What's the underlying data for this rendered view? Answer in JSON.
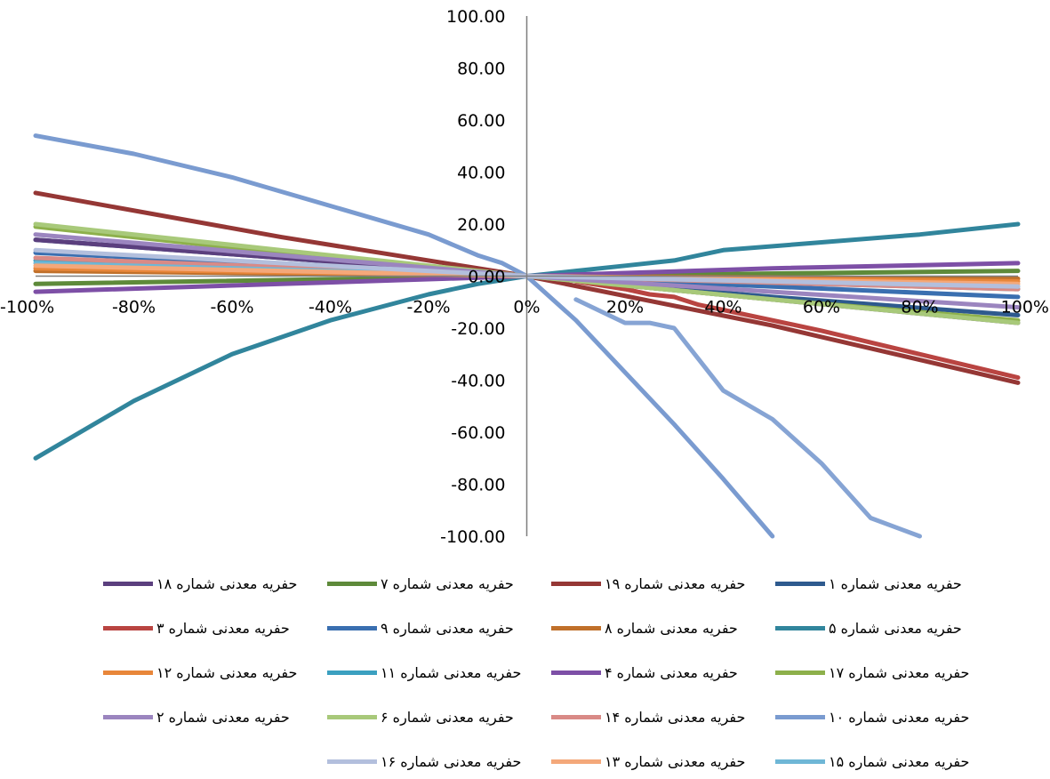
{
  "chart_data": {
    "type": "line",
    "title": "",
    "xlabel": "",
    "ylabel": "",
    "xlim": [
      -100,
      100
    ],
    "ylim": [
      -100,
      100
    ],
    "x_tick_labels": [
      "-100%",
      "-80%",
      "-60%",
      "-40%",
      "-20%",
      "0%",
      "20%",
      "40%",
      "60%",
      "80%",
      "100%"
    ],
    "y_tick_labels": [
      "100.00",
      "80.00",
      "60.00",
      "40.00",
      "20.00",
      "0.00",
      "-20.00",
      "-40.00",
      "-60.00",
      "-80.00",
      "-100.00"
    ],
    "legend_position": "bottom",
    "series": [
      {
        "name": "حفریه معدنی شماره ۱",
        "color": "#2E5A8E",
        "points": [
          [
            -100,
            14
          ],
          [
            -50,
            7
          ],
          [
            0,
            0
          ],
          [
            50,
            -8
          ],
          [
            100,
            -15
          ]
        ]
      },
      {
        "name": "حفریه معدنی شماره ۱۹",
        "color": "#953735",
        "points": [
          [
            -100,
            32
          ],
          [
            -50,
            15
          ],
          [
            0,
            0
          ],
          [
            50,
            -19
          ],
          [
            100,
            -41
          ]
        ]
      },
      {
        "name": "حفریه معدنی شماره ۷",
        "color": "#5E8A3A",
        "points": [
          [
            -100,
            -3
          ],
          [
            0,
            0
          ],
          [
            100,
            2
          ]
        ]
      },
      {
        "name": "حفریه معدنی شماره ۱۸",
        "color": "#5B3F7E",
        "points": [
          [
            -100,
            14
          ],
          [
            -50,
            7
          ],
          [
            0,
            0
          ],
          [
            50,
            -9
          ],
          [
            100,
            -18
          ]
        ]
      },
      {
        "name": "حفریه معدنی شماره ۵",
        "color": "#31859C",
        "points": [
          [
            -100,
            -70
          ],
          [
            -80,
            -48
          ],
          [
            -60,
            -30
          ],
          [
            -40,
            -17
          ],
          [
            -20,
            -7
          ],
          [
            -10,
            -3
          ],
          [
            0,
            0
          ],
          [
            10,
            2
          ],
          [
            20,
            4
          ],
          [
            30,
            6
          ],
          [
            40,
            10
          ],
          [
            60,
            13
          ],
          [
            80,
            16
          ],
          [
            100,
            20
          ]
        ]
      },
      {
        "name": "حفریه معدنی شماره ۸",
        "color": "#C0702A",
        "points": [
          [
            -100,
            2
          ],
          [
            0,
            0
          ],
          [
            100,
            -1
          ]
        ]
      },
      {
        "name": "حفریه معدنی شماره ۹",
        "color": "#3A6FB0",
        "points": [
          [
            -100,
            9
          ],
          [
            0,
            0
          ],
          [
            100,
            -8
          ]
        ]
      },
      {
        "name": "حفریه معدنی شماره ۳",
        "color": "#B94441",
        "points": [
          [
            10,
            -2
          ],
          [
            20,
            -5
          ],
          [
            25,
            -7
          ],
          [
            30,
            -8
          ],
          [
            35,
            -11
          ],
          [
            40,
            -13
          ],
          [
            60,
            -21
          ],
          [
            80,
            -30
          ],
          [
            100,
            -39
          ]
        ]
      },
      {
        "name": "حفریه معدنی شماره ۱۷",
        "color": "#8DB04B",
        "points": [
          [
            -100,
            19
          ],
          [
            -50,
            9
          ],
          [
            0,
            0
          ],
          [
            50,
            -9
          ],
          [
            100,
            -17
          ]
        ]
      },
      {
        "name": "حفریه معدنی شماره ۴",
        "color": "#7D4FA6",
        "points": [
          [
            -100,
            -6
          ],
          [
            -50,
            -3
          ],
          [
            0,
            0
          ],
          [
            50,
            3
          ],
          [
            100,
            5
          ]
        ]
      },
      {
        "name": "حفریه معدنی شماره ۱۱",
        "color": "#3BA0C0",
        "points": [
          [
            -100,
            6
          ],
          [
            0,
            0
          ],
          [
            100,
            -5
          ]
        ]
      },
      {
        "name": "حفریه معدنی شماره ۱۲",
        "color": "#E8863A",
        "points": [
          [
            -100,
            3
          ],
          [
            0,
            0
          ],
          [
            100,
            -2
          ]
        ]
      },
      {
        "name": "حفریه معدنی شماره ۱۰",
        "color": "#7A9BD0",
        "points": [
          [
            -100,
            54
          ],
          [
            -80,
            47
          ],
          [
            -60,
            38
          ],
          [
            -40,
            27
          ],
          [
            -20,
            16
          ],
          [
            -10,
            8
          ],
          [
            -5,
            5
          ],
          [
            0,
            0
          ],
          [
            10,
            -17
          ],
          [
            20,
            -37
          ],
          [
            30,
            -57
          ],
          [
            40,
            -78
          ],
          [
            50,
            -100
          ]
        ]
      },
      {
        "name": "حفریه معدنی شماره ۱۴",
        "color": "#D98A86",
        "points": [
          [
            -100,
            7
          ],
          [
            0,
            0
          ],
          [
            100,
            -5
          ]
        ]
      },
      {
        "name": "حفریه معدنی شماره ۶",
        "color": "#A8C97A",
        "points": [
          [
            -100,
            20
          ],
          [
            -50,
            10
          ],
          [
            0,
            0
          ],
          [
            50,
            -9
          ],
          [
            100,
            -18
          ]
        ]
      },
      {
        "name": "حفریه معدنی شماره ۲",
        "color": "#9B85BF",
        "points": [
          [
            -100,
            16
          ],
          [
            -50,
            8
          ],
          [
            0,
            0
          ],
          [
            50,
            -6
          ],
          [
            100,
            -12
          ]
        ]
      },
      {
        "name": "حفریه معدنی شماره ۱۵",
        "color": "#6FB7D6",
        "points": [
          [
            -100,
            5
          ],
          [
            0,
            0
          ],
          [
            100,
            -4
          ]
        ]
      },
      {
        "name": "حفریه معدنی شماره ۱۳",
        "color": "#F4A87A",
        "points": [
          [
            -100,
            4
          ],
          [
            0,
            0
          ],
          [
            100,
            -3
          ]
        ]
      },
      {
        "name": "حفریه معدنی شماره ۱۶",
        "color": "#B3BFDD",
        "points": [
          [
            -100,
            10
          ],
          [
            0,
            0
          ],
          [
            100,
            -4
          ]
        ]
      },
      {
        "name": "حفریه معدنی شماره ۱۰",
        "color": "#86A4D4",
        "points": [
          [
            10,
            -9
          ],
          [
            20,
            -18
          ],
          [
            25,
            -18
          ],
          [
            30,
            -20
          ],
          [
            35,
            -32
          ],
          [
            40,
            -44
          ],
          [
            50,
            -55
          ],
          [
            60,
            -72
          ],
          [
            70,
            -93
          ],
          [
            80,
            -100
          ]
        ]
      }
    ]
  }
}
